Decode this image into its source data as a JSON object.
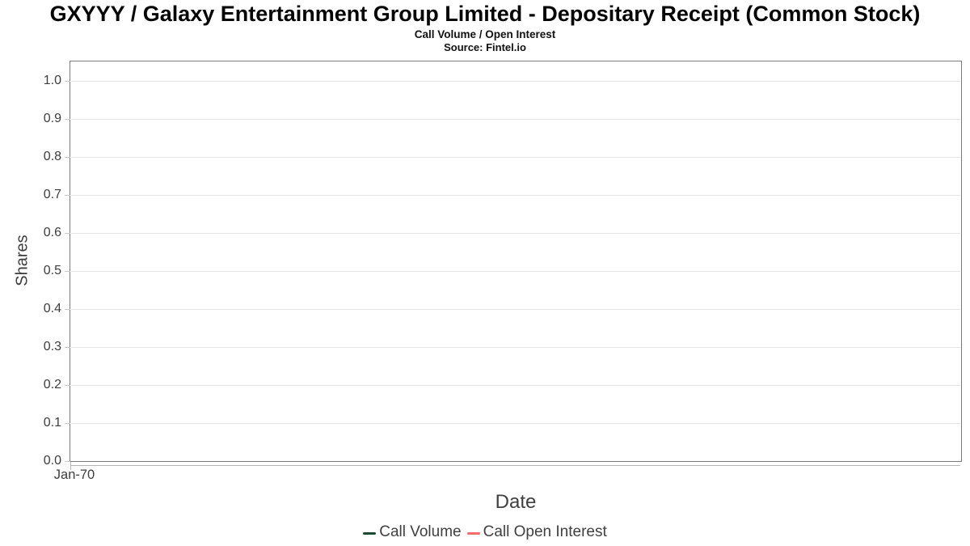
{
  "header": {
    "title": "GXYYY / Galaxy Entertainment Group Limited - Depositary Receipt (Common Stock)",
    "subtitle": "Call Volume / Open Interest",
    "source": "Source: Fintel.io"
  },
  "y_axis": {
    "label": "Shares",
    "ticks": [
      "1.0",
      "0.9",
      "0.8",
      "0.7",
      "0.6",
      "0.5",
      "0.4",
      "0.3",
      "0.2",
      "0.1",
      "0.0"
    ]
  },
  "x_axis": {
    "label": "Date",
    "ticks": [
      "Jan-70"
    ]
  },
  "legend": {
    "items": [
      {
        "name": "Call Volume",
        "color": "#1d4b32"
      },
      {
        "name": "Call Open Interest",
        "color": "#f96a6a"
      }
    ]
  },
  "colors": {
    "background": "#ffffff",
    "plot_border": "#7b7b7b",
    "gridline": "#e5e5e5",
    "axis_line": "#b5b5b5",
    "tick_text": "#3d3d3d",
    "call_volume": "#1d4b32",
    "call_open_interest": "#f96a6a"
  },
  "chart_data": {
    "type": "line",
    "title": "GXYYY / Galaxy Entertainment Group Limited - Depositary Receipt (Common Stock)",
    "subtitle": "Call Volume / Open Interest",
    "source": "Source: Fintel.io",
    "xlabel": "Date",
    "ylabel": "Shares",
    "x_tick_labels": [
      "Jan-70"
    ],
    "y_tick_labels": [
      "0.0",
      "0.1",
      "0.2",
      "0.3",
      "0.4",
      "0.5",
      "0.6",
      "0.7",
      "0.8",
      "0.9",
      "1.0"
    ],
    "ylim": [
      0,
      1.05
    ],
    "grid": true,
    "legend_position": "bottom-center",
    "series": [
      {
        "name": "Call Volume",
        "color": "#1d4b32",
        "x": [],
        "y": []
      },
      {
        "name": "Call Open Interest",
        "color": "#f96a6a",
        "x": [],
        "y": []
      }
    ]
  }
}
